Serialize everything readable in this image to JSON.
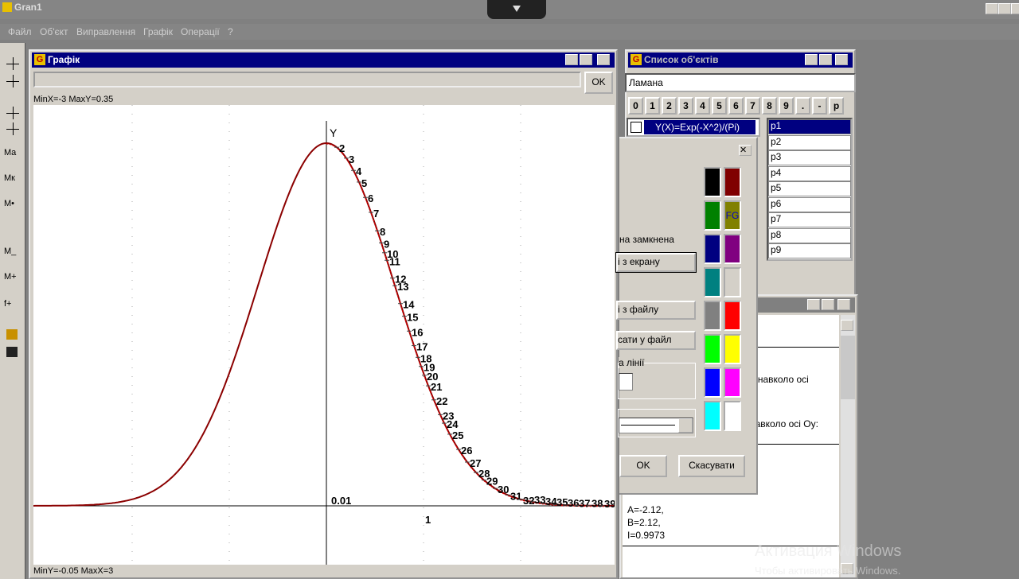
{
  "app": {
    "title": "Gran1",
    "menu": [
      "Файл",
      "Об'єкт",
      "Виправлення",
      "Графік",
      "Операції",
      "?"
    ],
    "toolbar": [
      "Mа",
      "Mк",
      "M•",
      "M_",
      "M+",
      "f+"
    ]
  },
  "graph_window": {
    "title": "Графік",
    "ok": "OK",
    "top_label": "MinX=-3 MaxY=0.35",
    "bottom_label": "MinY=-0.05 MaxX=3",
    "axis_label": "Y",
    "y_label": "0.01",
    "x_label": "1",
    "points": [
      "2",
      "3",
      "4",
      "5",
      "6",
      "7",
      "8",
      "9",
      "10",
      "11",
      "12",
      "13",
      "14",
      "15",
      "16",
      "17",
      "18",
      "19",
      "20",
      "21",
      "22",
      "23",
      "24",
      "25",
      "26",
      "27",
      "28",
      "29",
      "30",
      "31",
      "32",
      "33",
      "34",
      "35",
      "36",
      "37",
      "38",
      "39"
    ]
  },
  "objects_window": {
    "title": "Список об'єктів",
    "input": "Ламана",
    "keys": [
      "0",
      "1",
      "2",
      "3",
      "4",
      "5",
      "6",
      "7",
      "8",
      "9",
      ".",
      "-",
      "p"
    ],
    "function": "Y(X)=Exp(-X^2)/(Pi)",
    "items": [
      "p1",
      "p2",
      "p3",
      "p4",
      "p5",
      "p6",
      "p7",
      "p8",
      "p9"
    ]
  },
  "dialog": {
    "closed": "на замкнена",
    "from_screen": "і з екрану",
    "from_file": "і з файлу",
    "to_file": "сати у файл",
    "line_group": "а лінії",
    "fg": "FG",
    "ok": "OK",
    "cancel": "Скасувати"
  },
  "info_window": {
    "lines": [
      "я навколо осі",
      "навколо осі Оу:"
    ],
    "results": [
      "A=-2.12,",
      "B=2.12,",
      "I=0.9973"
    ]
  },
  "watermark": {
    "title": "Активация Windows",
    "subtitle": "Чтобы активировать Windows."
  }
}
